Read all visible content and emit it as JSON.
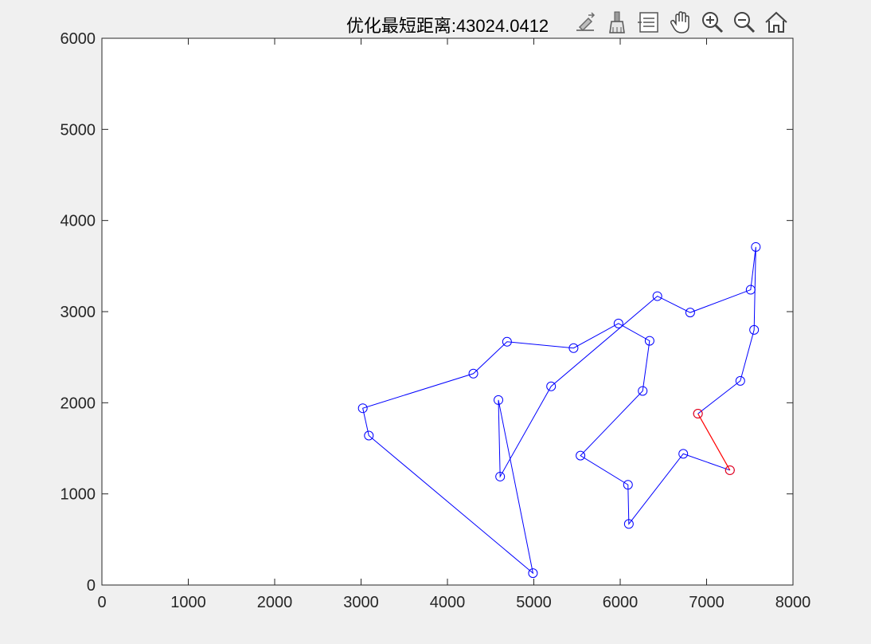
{
  "toolbar": {
    "tools": [
      {
        "name": "edit-plot-icon"
      },
      {
        "name": "brush-icon"
      },
      {
        "name": "data-tips-icon"
      },
      {
        "name": "pan-icon"
      },
      {
        "name": "zoom-in-icon"
      },
      {
        "name": "zoom-out-icon"
      },
      {
        "name": "home-icon"
      }
    ]
  },
  "chart_data": {
    "type": "line",
    "title": "优化最短距离:43024.0412",
    "xlabel": "",
    "ylabel": "",
    "xlim": [
      0,
      8000
    ],
    "ylim": [
      0,
      6000
    ],
    "xticks": [
      0,
      1000,
      2000,
      3000,
      4000,
      5000,
      6000,
      7000,
      8000
    ],
    "yticks": [
      0,
      1000,
      2000,
      3000,
      4000,
      5000,
      6000
    ],
    "grid": false,
    "colors": {
      "route": "#0000ff",
      "return_segment": "#ff0000",
      "marker": "#0000ff"
    },
    "series": [
      {
        "marker": "circle",
        "x": [
          6900,
          7390,
          7550,
          7570,
          7510,
          6810,
          6430,
          5200,
          4610,
          4590,
          4990,
          3090,
          3020,
          4300,
          4690,
          5460,
          5980,
          6340,
          6260,
          5540,
          6090,
          6100,
          6730,
          7270
        ],
        "y": [
          1880,
          2240,
          2800,
          3710,
          3240,
          2990,
          3170,
          2180,
          1190,
          2030,
          130,
          1640,
          1940,
          2320,
          2670,
          2600,
          2870,
          2680,
          2130,
          1420,
          1100,
          670,
          1440,
          1260
        ]
      }
    ],
    "series_b": {
      "x": [
        7270,
        6900
      ],
      "y": [
        1260,
        1880
      ]
    }
  }
}
